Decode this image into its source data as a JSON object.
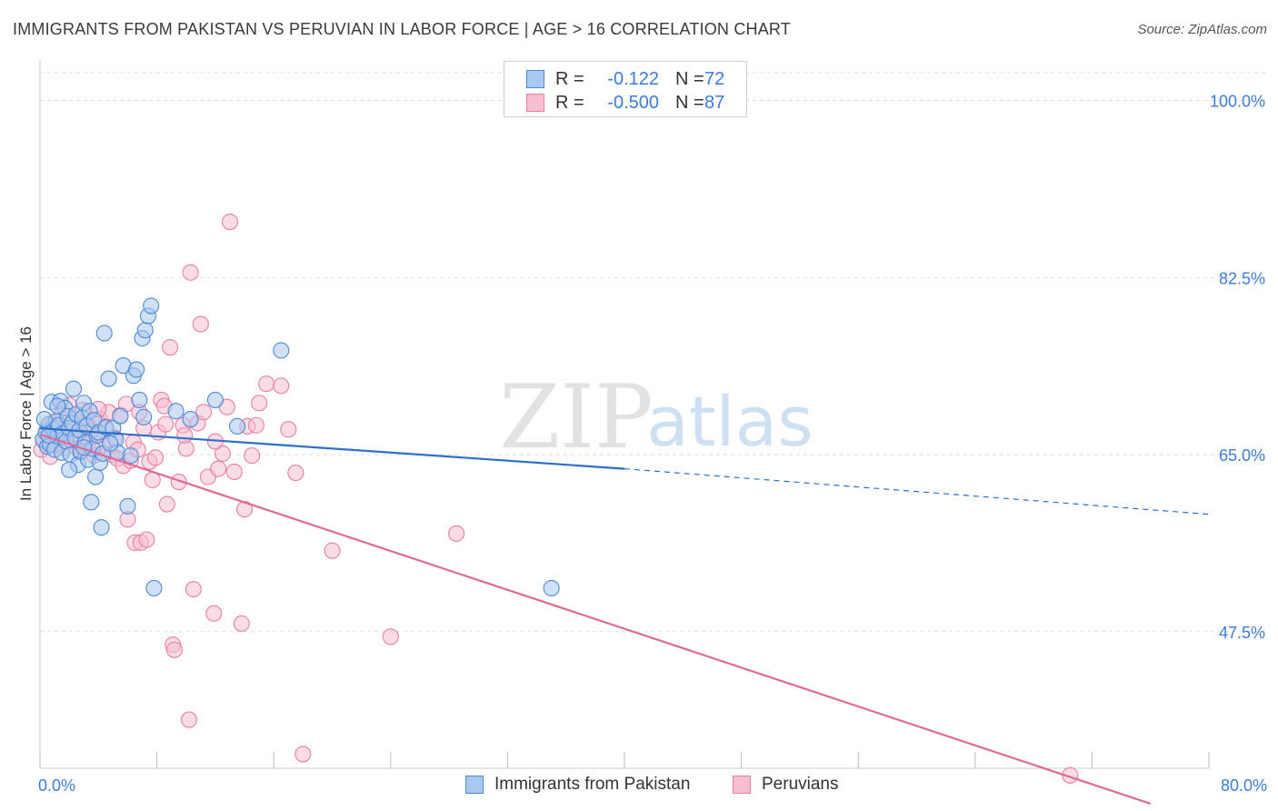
{
  "title": "IMMIGRANTS FROM PAKISTAN VS PERUVIAN IN LABOR FORCE | AGE > 16 CORRELATION CHART",
  "source": "Source: ZipAtlas.com",
  "watermark": {
    "zip": "ZIP",
    "atlas": "atlas"
  },
  "legend": {
    "r_label": "R =",
    "n_label": "N =",
    "pakistan": {
      "r": "-0.122",
      "n": "72"
    },
    "peruvian": {
      "r": "-0.500",
      "n": "87"
    }
  },
  "colors": {
    "pakistan_fill": "#a9c8ef",
    "pakistan_stroke": "#4d8ad6",
    "pakistan_line": "#2f6fcb",
    "peruvian_fill": "#f6bfd1",
    "peruvian_stroke": "#e87fa2",
    "peruvian_line": "#e06a96",
    "axis_label": "#3b7dd8",
    "grid": "#dddddd"
  },
  "chart_data": {
    "type": "scatter",
    "title": "IMMIGRANTS FROM PAKISTAN VS PERUVIAN IN LABOR FORCE | AGE > 16 CORRELATION CHART",
    "xlabel": "",
    "ylabel": "In Labor Force | Age > 16",
    "xlim": [
      0,
      80
    ],
    "ylim": [
      34,
      104
    ],
    "x_tick_labels": [
      "0.0%",
      "80.0%"
    ],
    "y_ticks": [
      47.5,
      65.0,
      82.5,
      100.0
    ],
    "y_tick_labels": [
      "47.5%",
      "65.0%",
      "82.5%",
      "100.0%"
    ],
    "series": [
      {
        "name": "Immigrants from Pakistan",
        "points": [
          [
            0.2,
            66.5
          ],
          [
            0.4,
            67.2
          ],
          [
            0.5,
            65.8
          ],
          [
            0.6,
            68.0
          ],
          [
            0.7,
            66.0
          ],
          [
            0.8,
            70.2
          ],
          [
            0.9,
            67.5
          ],
          [
            1.0,
            65.5
          ],
          [
            1.1,
            68.3
          ],
          [
            1.2,
            66.8
          ],
          [
            1.3,
            67.9
          ],
          [
            1.4,
            70.3
          ],
          [
            1.5,
            65.2
          ],
          [
            1.6,
            67.1
          ],
          [
            1.7,
            69.6
          ],
          [
            1.8,
            66.3
          ],
          [
            1.9,
            68.8
          ],
          [
            2.0,
            67.6
          ],
          [
            2.1,
            65.0
          ],
          [
            2.2,
            68.1
          ],
          [
            2.3,
            71.5
          ],
          [
            2.4,
            66.7
          ],
          [
            2.5,
            69.0
          ],
          [
            2.6,
            64.0
          ],
          [
            2.7,
            67.4
          ],
          [
            2.8,
            65.3
          ],
          [
            2.9,
            68.6
          ],
          [
            3.0,
            70.1
          ],
          [
            3.1,
            66.2
          ],
          [
            3.2,
            67.8
          ],
          [
            3.3,
            64.5
          ],
          [
            3.4,
            69.3
          ],
          [
            3.5,
            60.3
          ],
          [
            3.6,
            65.6
          ],
          [
            3.7,
            68.4
          ],
          [
            3.8,
            62.8
          ],
          [
            3.9,
            66.9
          ],
          [
            4.0,
            67.2
          ],
          [
            4.1,
            64.2
          ],
          [
            4.2,
            57.8
          ],
          [
            4.3,
            65.1
          ],
          [
            4.4,
            77.0
          ],
          [
            4.5,
            67.7
          ],
          [
            4.7,
            72.5
          ],
          [
            5.0,
            67.6
          ],
          [
            5.2,
            66.5
          ],
          [
            5.3,
            65.2
          ],
          [
            5.5,
            68.8
          ],
          [
            5.7,
            73.8
          ],
          [
            6.0,
            59.9
          ],
          [
            6.2,
            64.9
          ],
          [
            6.4,
            72.8
          ],
          [
            6.6,
            73.4
          ],
          [
            6.8,
            70.4
          ],
          [
            7.0,
            76.5
          ],
          [
            7.1,
            68.7
          ],
          [
            7.2,
            77.3
          ],
          [
            7.4,
            78.7
          ],
          [
            7.6,
            79.7
          ],
          [
            7.8,
            51.8
          ],
          [
            9.3,
            69.3
          ],
          [
            10.3,
            68.5
          ],
          [
            12.0,
            70.4
          ],
          [
            13.5,
            67.8
          ],
          [
            16.5,
            75.3
          ],
          [
            35.0,
            51.8
          ],
          [
            0.3,
            68.5
          ],
          [
            1.2,
            69.8
          ],
          [
            2.0,
            63.5
          ],
          [
            3.0,
            65.7
          ],
          [
            4.8,
            66.1
          ],
          [
            0.6,
            66.9
          ]
        ]
      },
      {
        "name": "Peruvians",
        "points": [
          [
            0.1,
            65.5
          ],
          [
            0.3,
            66.3
          ],
          [
            0.5,
            67.5
          ],
          [
            0.7,
            64.8
          ],
          [
            0.9,
            68.2
          ],
          [
            1.1,
            66.0
          ],
          [
            1.3,
            67.1
          ],
          [
            1.5,
            69.0
          ],
          [
            1.7,
            65.7
          ],
          [
            1.9,
            67.8
          ],
          [
            2.1,
            66.4
          ],
          [
            2.3,
            68.6
          ],
          [
            2.5,
            67.0
          ],
          [
            2.7,
            65.3
          ],
          [
            2.9,
            69.4
          ],
          [
            3.1,
            66.8
          ],
          [
            3.3,
            68.0
          ],
          [
            3.5,
            67.3
          ],
          [
            3.7,
            64.9
          ],
          [
            3.9,
            66.1
          ],
          [
            4.1,
            68.5
          ],
          [
            4.3,
            65.9
          ],
          [
            4.5,
            67.6
          ],
          [
            4.7,
            69.2
          ],
          [
            4.9,
            65.0
          ],
          [
            5.1,
            66.7
          ],
          [
            5.3,
            64.6
          ],
          [
            5.5,
            68.9
          ],
          [
            5.7,
            63.9
          ],
          [
            5.9,
            70.0
          ],
          [
            6.0,
            58.6
          ],
          [
            6.2,
            64.4
          ],
          [
            6.4,
            66.2
          ],
          [
            6.5,
            56.3
          ],
          [
            6.7,
            65.5
          ],
          [
            6.9,
            56.3
          ],
          [
            7.1,
            67.6
          ],
          [
            7.3,
            56.6
          ],
          [
            7.5,
            64.3
          ],
          [
            7.7,
            62.5
          ],
          [
            7.9,
            64.7
          ],
          [
            8.1,
            67.2
          ],
          [
            8.3,
            70.4
          ],
          [
            8.5,
            69.8
          ],
          [
            8.7,
            60.1
          ],
          [
            8.9,
            75.6
          ],
          [
            9.1,
            46.2
          ],
          [
            9.2,
            45.7
          ],
          [
            9.5,
            62.3
          ],
          [
            9.8,
            67.9
          ],
          [
            10.0,
            65.6
          ],
          [
            10.3,
            83.0
          ],
          [
            10.5,
            51.7
          ],
          [
            10.8,
            68.1
          ],
          [
            11.0,
            77.9
          ],
          [
            11.5,
            62.8
          ],
          [
            11.9,
            49.3
          ],
          [
            12.2,
            63.6
          ],
          [
            12.5,
            65.1
          ],
          [
            12.8,
            69.7
          ],
          [
            13.0,
            88.0
          ],
          [
            13.3,
            63.3
          ],
          [
            13.8,
            48.3
          ],
          [
            14.0,
            59.6
          ],
          [
            14.2,
            67.8
          ],
          [
            14.5,
            64.9
          ],
          [
            15.0,
            70.1
          ],
          [
            15.5,
            72.0
          ],
          [
            16.5,
            71.8
          ],
          [
            17.0,
            67.5
          ],
          [
            17.5,
            63.2
          ],
          [
            18.0,
            35.4
          ],
          [
            20.0,
            55.5
          ],
          [
            24.0,
            47.0
          ],
          [
            28.5,
            57.2
          ],
          [
            10.2,
            38.8
          ],
          [
            4.0,
            69.5
          ],
          [
            2.0,
            69.9
          ],
          [
            1.0,
            67.0
          ],
          [
            3.0,
            66.0
          ],
          [
            6.8,
            69.2
          ],
          [
            8.6,
            68.0
          ],
          [
            11.2,
            69.2
          ],
          [
            12.0,
            66.3
          ],
          [
            14.8,
            67.9
          ],
          [
            70.5,
            33.3
          ],
          [
            9.9,
            66.9
          ]
        ]
      }
    ],
    "trend_lines": [
      {
        "name": "Immigrants from Pakistan",
        "solid": [
          [
            0,
            67.6
          ],
          [
            40,
            63.6
          ]
        ],
        "dashed": [
          [
            40,
            63.6
          ],
          [
            80,
            59.1
          ]
        ]
      },
      {
        "name": "Peruvians",
        "solid": [
          [
            0,
            67.0
          ],
          [
            76,
            30.5
          ]
        ]
      }
    ]
  },
  "bottom_legend": {
    "pakistan": "Immigrants from Pakistan",
    "peruvian": "Peruvians"
  }
}
